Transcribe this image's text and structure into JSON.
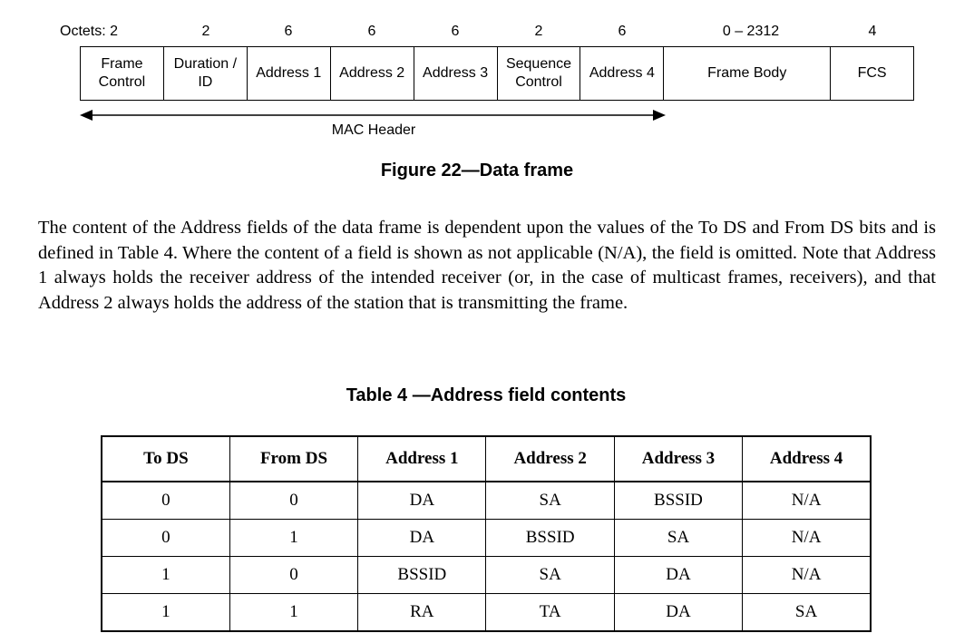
{
  "figure": {
    "octets": [
      "Octets: 2",
      "2",
      "6",
      "6",
      "6",
      "2",
      "6",
      "0 – 2312",
      "4"
    ],
    "fields": [
      "Frame\nControl",
      "Duration /\nID",
      "Address 1",
      "Address 2",
      "Address 3",
      "Sequence\nControl",
      "Address 4",
      "Frame Body",
      "FCS"
    ],
    "mac_header_label": "MAC Header",
    "caption": "Figure 22—Data frame"
  },
  "paragraph": "The content of the Address fields of the data frame is dependent upon the values of the To DS and From DS bits and is defined in Table 4. Where the content of a field is shown as not applicable (N/A), the field is omitted. Note that Address 1 always holds the receiver address of the intended receiver (or, in the case of multicast frames, receivers), and that Address 2 always holds the address of the station that is transmitting the frame.",
  "table": {
    "caption": "Table 4 —Address field contents",
    "headers": [
      "To DS",
      "From DS",
      "Address 1",
      "Address 2",
      "Address 3",
      "Address 4"
    ],
    "rows": [
      [
        "0",
        "0",
        "DA",
        "SA",
        "BSSID",
        "N/A"
      ],
      [
        "0",
        "1",
        "DA",
        "BSSID",
        "SA",
        "N/A"
      ],
      [
        "1",
        "0",
        "BSSID",
        "SA",
        "DA",
        "N/A"
      ],
      [
        "1",
        "1",
        "RA",
        "TA",
        "DA",
        "SA"
      ]
    ]
  }
}
